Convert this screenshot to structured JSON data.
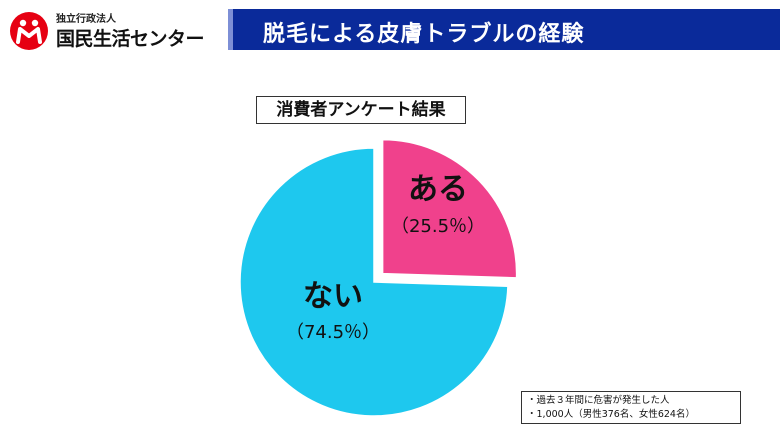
{
  "header": {
    "org_sub": "独立行政法人",
    "org_main": "国民生活センター",
    "title": "脱毛による皮膚トラブルの経験"
  },
  "survey_label": "消費者アンケート結果",
  "chart_data": {
    "type": "pie",
    "title": "",
    "slices": [
      {
        "label": "ある",
        "value_label": "（25.5％）",
        "value": 25.5,
        "color": "#f0418c",
        "exploded": true
      },
      {
        "label": "ない",
        "value_label": "（74.5％）",
        "value": 74.5,
        "color": "#1ec8ee",
        "exploded": false
      }
    ],
    "legend": "none"
  },
  "note": {
    "line1": "・過去３年間に危害が発生した人",
    "line2": "・1,000人（男性376名、女性624名）"
  },
  "colors": {
    "title_bar": "#0a2a9a",
    "logo": "#e60012",
    "slice_yes": "#f0418c",
    "slice_no": "#1ec8ee"
  }
}
